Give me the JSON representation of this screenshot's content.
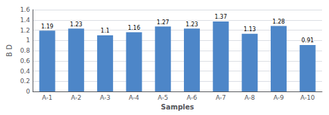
{
  "chart_data": {
    "type": "bar",
    "categories": [
      "A-1",
      "A-2",
      "A-3",
      "A-4",
      "A-5",
      "A-6",
      "A-7",
      "A-8",
      "A-9",
      "A-10"
    ],
    "values": [
      1.19,
      1.23,
      1.1,
      1.16,
      1.27,
      1.23,
      1.37,
      1.13,
      1.28,
      0.91
    ],
    "color": "#4d86c8",
    "xlabel": "Samples",
    "ylabel": "B D",
    "ylim": [
      0,
      1.6
    ],
    "yticks": [
      0,
      0.2,
      0.4,
      0.6,
      0.8,
      1,
      1.2,
      1.4,
      1.6
    ],
    "grid": true,
    "data_labels": true
  }
}
